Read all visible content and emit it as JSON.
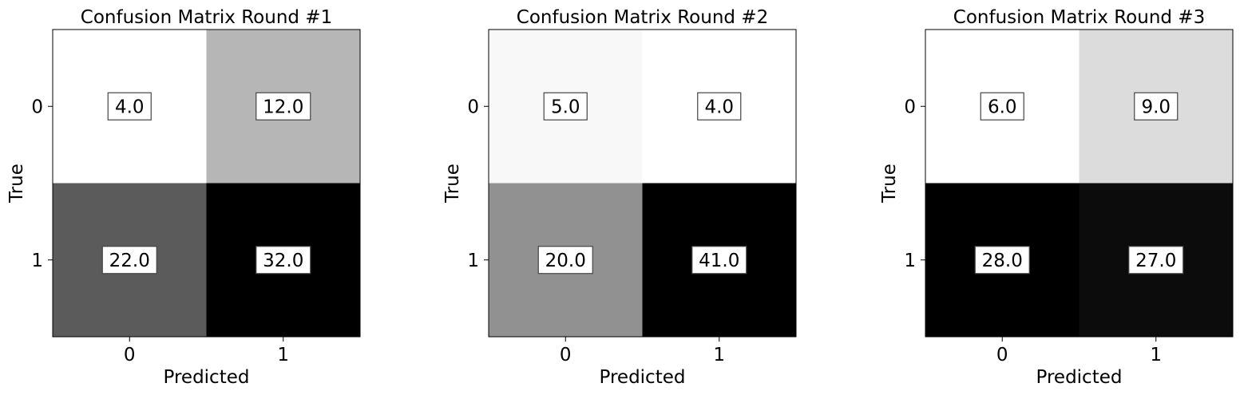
{
  "chart_data": [
    {
      "type": "heatmap",
      "title": "Confusion Matrix Round #1",
      "xlabel": "Predicted",
      "ylabel": "True",
      "x_ticks": [
        "0",
        "1"
      ],
      "y_ticks": [
        "0",
        "1"
      ],
      "values": [
        [
          4.0,
          12.0
        ],
        [
          22.0,
          32.0
        ]
      ],
      "value_labels": [
        [
          "4.0",
          "12.0"
        ],
        [
          "22.0",
          "32.0"
        ]
      ],
      "colormap": "Greys"
    },
    {
      "type": "heatmap",
      "title": "Confusion Matrix Round #2",
      "xlabel": "Predicted",
      "ylabel": "True",
      "x_ticks": [
        "0",
        "1"
      ],
      "y_ticks": [
        "0",
        "1"
      ],
      "values": [
        [
          5.0,
          4.0
        ],
        [
          20.0,
          41.0
        ]
      ],
      "value_labels": [
        [
          "5.0",
          "4.0"
        ],
        [
          "20.0",
          "41.0"
        ]
      ],
      "colormap": "Greys"
    },
    {
      "type": "heatmap",
      "title": "Confusion Matrix Round #3",
      "xlabel": "Predicted",
      "ylabel": "True",
      "x_ticks": [
        "0",
        "1"
      ],
      "y_ticks": [
        "0",
        "1"
      ],
      "values": [
        [
          6.0,
          9.0
        ],
        [
          28.0,
          27.0
        ]
      ],
      "value_labels": [
        [
          "6.0",
          "9.0"
        ],
        [
          "28.0",
          "27.0"
        ]
      ],
      "colormap": "Greys"
    }
  ]
}
